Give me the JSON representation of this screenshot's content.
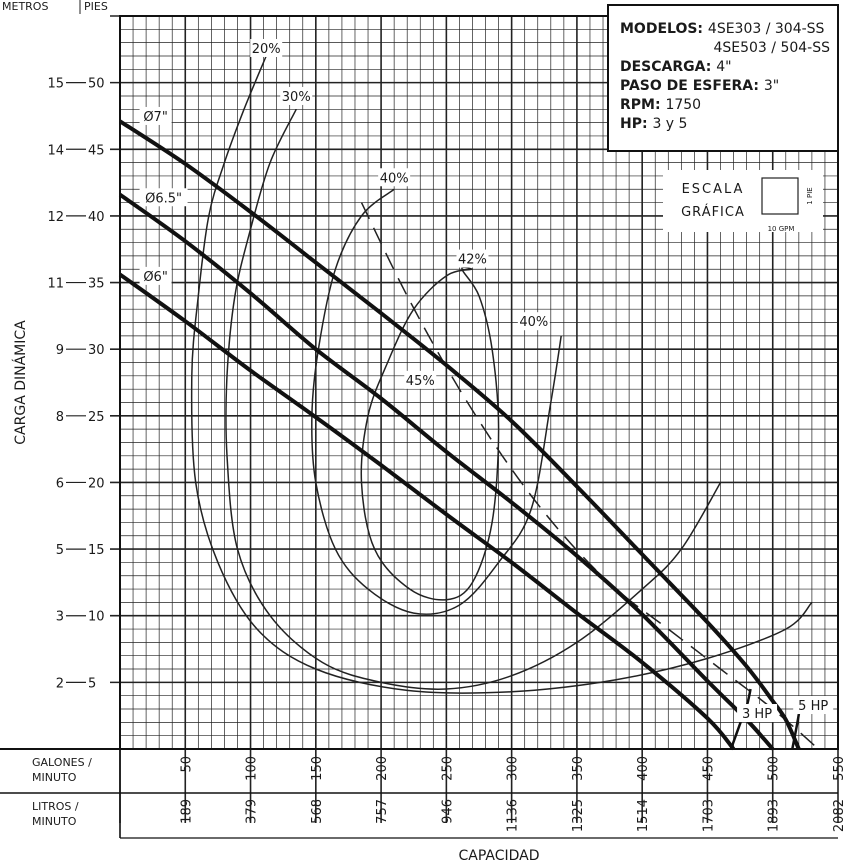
{
  "chart_data": {
    "type": "line",
    "title": "",
    "xlabel": "CAPACIDAD",
    "ylabel": "CARGA DINÁMICA",
    "xlim": [
      0,
      550
    ],
    "ylim": [
      0,
      55
    ],
    "x_units_left": "GALONES / MINUTO",
    "x_units_left_lines": [
      "GALONES /",
      "MINUTO"
    ],
    "x_units_secondary": "LITROS / MINUTO",
    "x_units_secondary_lines": [
      "LITROS /",
      "MINUTO"
    ],
    "y_units_header": [
      "METROS",
      "PIES"
    ],
    "grid": true,
    "x_ticks": [
      {
        "gpm": 50,
        "gpm_label": "50",
        "lpm_label": "189"
      },
      {
        "gpm": 100,
        "gpm_label": "100",
        "lpm_label": "379"
      },
      {
        "gpm": 150,
        "gpm_label": "150",
        "lpm_label": "568"
      },
      {
        "gpm": 200,
        "gpm_label": "200",
        "lpm_label": "757"
      },
      {
        "gpm": 250,
        "gpm_label": "250",
        "lpm_label": "946"
      },
      {
        "gpm": 300,
        "gpm_label": "300",
        "lpm_label": "1136"
      },
      {
        "gpm": 350,
        "gpm_label": "350",
        "lpm_label": "1325"
      },
      {
        "gpm": 400,
        "gpm_label": "400",
        "lpm_label": "1514"
      },
      {
        "gpm": 450,
        "gpm_label": "450",
        "lpm_label": "1703"
      },
      {
        "gpm": 500,
        "gpm_label": "500",
        "lpm_label": "1893"
      },
      {
        "gpm": 550,
        "gpm_label": "550",
        "lpm_label": "2082"
      }
    ],
    "y_ticks": [
      {
        "ft": 5,
        "ft_label": "5",
        "m_label": "2"
      },
      {
        "ft": 10,
        "ft_label": "10",
        "m_label": "3"
      },
      {
        "ft": 15,
        "ft_label": "15",
        "m_label": "5"
      },
      {
        "ft": 20,
        "ft_label": "20",
        "m_label": "6"
      },
      {
        "ft": 25,
        "ft_label": "25",
        "m_label": "8"
      },
      {
        "ft": 30,
        "ft_label": "30",
        "m_label": "9"
      },
      {
        "ft": 35,
        "ft_label": "35",
        "m_label": "11"
      },
      {
        "ft": 40,
        "ft_label": "40",
        "m_label": "12"
      },
      {
        "ft": 45,
        "ft_label": "45",
        "m_label": "14"
      },
      {
        "ft": 50,
        "ft_label": "50",
        "m_label": "15"
      }
    ],
    "series": [
      {
        "name": "Ø7\"",
        "label": "Ø7\"",
        "label_at": [
          15,
          47.5
        ],
        "x": [
          0,
          50,
          100,
          150,
          200,
          250,
          300,
          350,
          400,
          450,
          480,
          500,
          510,
          520
        ],
        "y": [
          47.1,
          43.9,
          40.3,
          36.5,
          32.7,
          28.8,
          24.6,
          19.7,
          14.6,
          9.5,
          6.2,
          3.6,
          2.2,
          0
        ]
      },
      {
        "name": "Ø6.5\"",
        "label": "Ø6.5\"",
        "label_at": [
          15,
          41.4
        ],
        "x": [
          0,
          50,
          100,
          150,
          200,
          250,
          300,
          350,
          400,
          450,
          480,
          500
        ],
        "y": [
          41.6,
          38.1,
          34.2,
          30.0,
          26.3,
          22.3,
          18.5,
          14.5,
          10.1,
          5.1,
          2.2,
          0
        ]
      },
      {
        "name": "Ø6\"",
        "label": "Ø6\"",
        "label_at": [
          15,
          35.5
        ],
        "x": [
          0,
          50,
          100,
          150,
          200,
          250,
          300,
          350,
          400,
          450,
          470
        ],
        "y": [
          35.6,
          32.1,
          28.4,
          24.9,
          21.3,
          17.6,
          14.0,
          10.2,
          6.5,
          2.3,
          0
        ]
      }
    ],
    "hp_boundaries": [
      {
        "label": "3 HP",
        "label_at": [
          488,
          2.7
        ],
        "x": [
          468,
          475,
          480,
          482,
          483
        ],
        "y": [
          0,
          1.9,
          3.2,
          4.0,
          4.5
        ]
      },
      {
        "label": "5 HP",
        "label_at": [
          531,
          3.3
        ],
        "x": [
          515,
          518,
          520,
          521,
          522
        ],
        "y": [
          0,
          1.5,
          2.6,
          3.2,
          3.6
        ]
      }
    ],
    "efficiency_curves": [
      {
        "label": "20%",
        "label_at": [
          112,
          52.6
        ],
        "x": [
          112,
          95,
          80,
          68,
          60,
          55,
          58,
          75,
          105,
          150,
          220,
          300,
          380,
          450,
          510,
          530
        ],
        "y": [
          52,
          48,
          44,
          40,
          34,
          28,
          20,
          14,
          9,
          6,
          4.4,
          4.3,
          5.2,
          6.8,
          9.0,
          11
        ]
      },
      {
        "label": "30%",
        "label_at": [
          135,
          49.0
        ],
        "x": [
          135,
          115,
          100,
          88,
          82,
          82,
          90,
          115,
          155,
          200,
          250,
          300,
          350,
          400,
          430,
          460
        ],
        "y": [
          48,
          44,
          39,
          34,
          28,
          22,
          15,
          10,
          6.5,
          5.0,
          4.5,
          5.5,
          8,
          12,
          15,
          20
        ]
      },
      {
        "label": "40%",
        "label_at": [
          210,
          42.9
        ],
        "x": [
          210,
          185,
          165,
          152,
          147,
          150,
          165,
          190,
          225,
          260,
          290,
          315,
          330,
          338
        ],
        "y": [
          42,
          40,
          36,
          30,
          25,
          20,
          15,
          12,
          10.2,
          10.8,
          14,
          18,
          26,
          31
        ]
      },
      {
        "label": "40%",
        "label_at": [
          317,
          32.1
        ],
        "x": [],
        "y": []
      },
      {
        "label": "42%",
        "label_at": [
          270,
          36.8
        ],
        "x": [
          270,
          250,
          225,
          205,
          190,
          185,
          195,
          222,
          250,
          270,
          285,
          290,
          285,
          275,
          262,
          270
        ],
        "y": [
          36,
          35.5,
          33,
          29,
          25,
          20,
          15,
          12,
          11.2,
          12.5,
          17,
          24,
          30,
          34,
          36,
          36
        ]
      }
    ],
    "bep_line": {
      "label": "45%",
      "label_at": [
        230,
        27.7
      ],
      "x": [
        185,
        220,
        260,
        300,
        340,
        380,
        420,
        460,
        500,
        535
      ],
      "y": [
        41,
        34,
        27,
        21,
        16,
        12,
        9,
        6,
        3,
        0
      ]
    },
    "info_box": [
      {
        "bold": "MODELOS:",
        "text": "4SE303 / 304-SS"
      },
      {
        "bold": "",
        "text": "4SE503 / 504-SS"
      },
      {
        "bold": "DESCARGA:",
        "text": "4\""
      },
      {
        "bold": "PASO DE ESFERA:",
        "text": "3\""
      },
      {
        "bold": "RPM:",
        "text": "1750"
      },
      {
        "bold": "HP:",
        "text": "3 y 5"
      }
    ],
    "scale_legend": {
      "lines": [
        "ESCALA",
        "GRÁFICA"
      ],
      "ft_label": "1 PIE",
      "gpm_label": "10 GPM"
    }
  }
}
